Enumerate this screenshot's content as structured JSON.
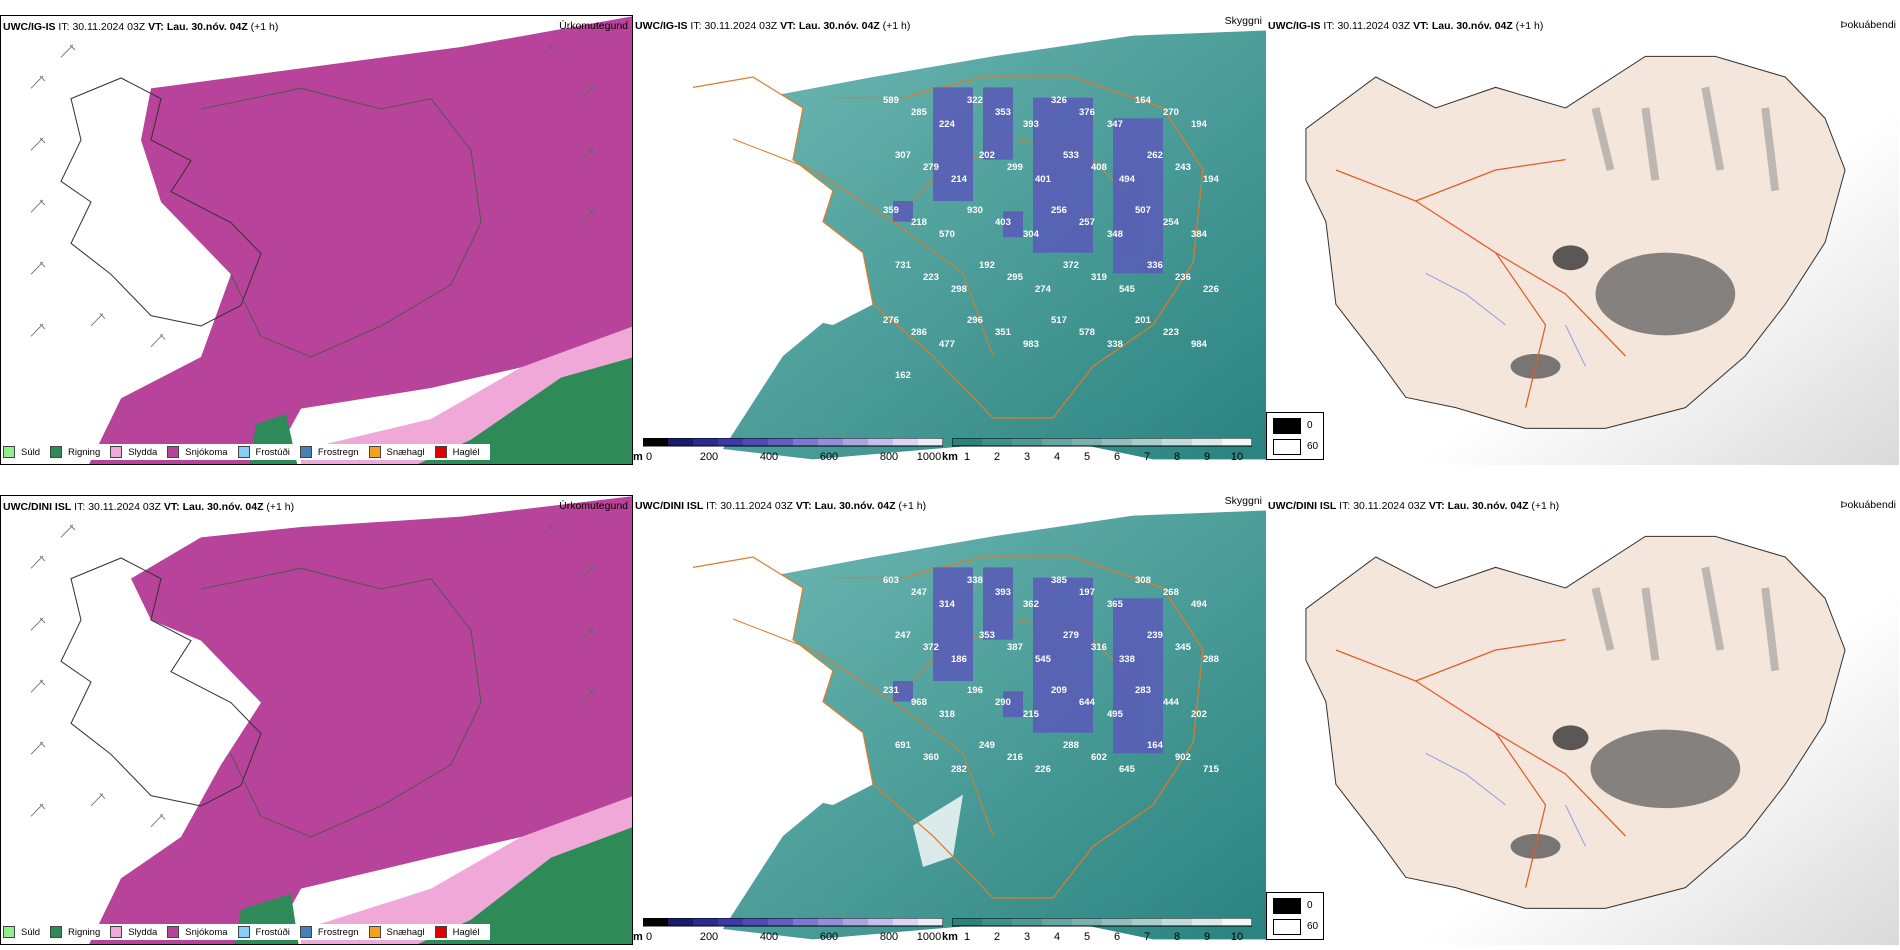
{
  "rows": [
    {
      "model": "UWC/IG-IS",
      "it_label": "IT:",
      "it_value": "30.11.2024 03Z",
      "vt_label": "VT:",
      "vt_value": "Lau. 30.nóv. 04Z",
      "lead": "(+1 h)",
      "panels": {
        "precip_title": "Úrkomutegund",
        "ceiling_title": "Skyggni",
        "fog_title": "Þokuábendi"
      },
      "ceiling_labels": [
        "589",
        "285",
        "224",
        "322",
        "353",
        "393",
        "326",
        "376",
        "347",
        "164",
        "270",
        "194",
        "307",
        "279",
        "214",
        "202",
        "299",
        "401",
        "533",
        "408",
        "494",
        "262",
        "243",
        "194",
        "359",
        "218",
        "570",
        "930",
        "403",
        "304",
        "256",
        "257",
        "348",
        "507",
        "254",
        "384",
        "731",
        "223",
        "298",
        "192",
        "295",
        "274",
        "372",
        "319",
        "545",
        "336",
        "236",
        "226",
        "276",
        "286",
        "477",
        "296",
        "351",
        "983",
        "517",
        "578",
        "338",
        "201",
        "223",
        "984",
        "162"
      ]
    },
    {
      "model": "UWC/DINI ISL",
      "it_label": "IT:",
      "it_value": "30.11.2024 03Z",
      "vt_label": "VT:",
      "vt_value": "Lau. 30.nóv. 04Z",
      "lead": "(+1 h)",
      "panels": {
        "precip_title": "Úrkomutegund",
        "ceiling_title": "Skyggni",
        "fog_title": "Þokuábendi"
      },
      "ceiling_labels": [
        "603",
        "247",
        "314",
        "338",
        "393",
        "362",
        "385",
        "197",
        "365",
        "308",
        "268",
        "494",
        "247",
        "372",
        "186",
        "353",
        "387",
        "545",
        "279",
        "316",
        "338",
        "239",
        "345",
        "288",
        "231",
        "968",
        "318",
        "196",
        "290",
        "215",
        "209",
        "644",
        "495",
        "283",
        "444",
        "202",
        "691",
        "360",
        "282",
        "249",
        "216",
        "226",
        "288",
        "602",
        "645",
        "164",
        "902",
        "715"
      ]
    }
  ],
  "legend": [
    {
      "label": "Súld",
      "color": "#90ee90"
    },
    {
      "label": "Rigning",
      "color": "#2e8b57"
    },
    {
      "label": "Slydda",
      "color": "#f0a8d8"
    },
    {
      "label": "Snjókoma",
      "color": "#b8439a"
    },
    {
      "label": "Frostúði",
      "color": "#87cefa"
    },
    {
      "label": "Frostregn",
      "color": "#4682b4"
    },
    {
      "label": "Snæhagl",
      "color": "#f5a020"
    },
    {
      "label": "Haglél",
      "color": "#e00000"
    }
  ],
  "ceiling_bar": {
    "unit": "m",
    "ticks": [
      "0",
      "200",
      "400",
      "600",
      "800",
      "1000"
    ]
  },
  "visibility_bar": {
    "unit": "km",
    "ticks": [
      "1",
      "2",
      "3",
      "4",
      "5",
      "6",
      "7",
      "8",
      "9",
      "10"
    ]
  },
  "fog_legend": {
    "min": "0",
    "max": "60"
  },
  "colors": {
    "snow": "#b8439a",
    "sleet": "#f0a8d8",
    "rain": "#2e8b57",
    "teal": "#3b8f8c",
    "land": "#f5e6dc",
    "road": "#e05a28"
  }
}
